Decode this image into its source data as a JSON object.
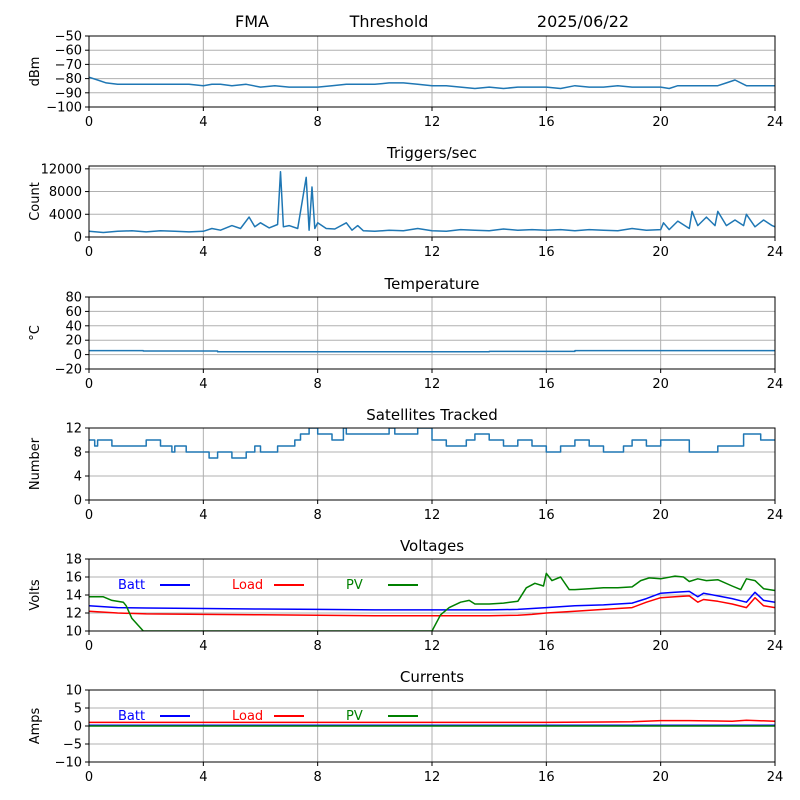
{
  "header": {
    "station": "FMA",
    "mode": "Threshold",
    "date": "2025/06/22"
  },
  "chart_data": [
    {
      "id": "signal",
      "type": "line",
      "title": "",
      "ylabel": "dBm",
      "xlim": [
        0,
        24
      ],
      "ylim": [
        -100,
        -50
      ],
      "xticks": [
        "0",
        "4",
        "8",
        "12",
        "16",
        "20",
        "24"
      ],
      "yticks": [
        "−50",
        "−60",
        "−70",
        "−80",
        "−90",
        "−100"
      ],
      "ytick_values": [
        -50,
        -60,
        -70,
        -80,
        -90,
        -100
      ],
      "grid": true,
      "series": [
        {
          "color": "#1f77b4",
          "x": [
            0,
            0.3,
            0.6,
            1,
            1.5,
            2,
            2.5,
            3,
            3.5,
            4,
            4.3,
            4.6,
            5,
            5.5,
            6,
            6.5,
            7,
            7.5,
            8,
            8.5,
            9,
            9.5,
            10,
            10.5,
            11,
            11.5,
            12,
            12.5,
            13,
            13.5,
            14,
            14.5,
            15,
            15.5,
            16,
            16.5,
            17,
            17.5,
            18,
            18.5,
            19,
            19.5,
            20,
            20.3,
            20.6,
            21,
            21.5,
            22,
            22.3,
            22.6,
            23,
            23.3,
            23.6,
            24
          ],
          "y": [
            -79,
            -81,
            -83,
            -84,
            -84,
            -84,
            -84,
            -84,
            -84,
            -85,
            -84,
            -84,
            -85,
            -84,
            -86,
            -85,
            -86,
            -86,
            -86,
            -85,
            -84,
            -84,
            -84,
            -83,
            -83,
            -84,
            -85,
            -85,
            -86,
            -87,
            -86,
            -87,
            -86,
            -86,
            -86,
            -87,
            -85,
            -86,
            -86,
            -85,
            -86,
            -86,
            -86,
            -87,
            -85,
            -85,
            -85,
            -85,
            -83,
            -81,
            -85,
            -85,
            -85,
            -85
          ]
        }
      ]
    },
    {
      "id": "triggers",
      "type": "line",
      "title": "Triggers/sec",
      "ylabel": "Count",
      "xlim": [
        0,
        24
      ],
      "ylim": [
        0,
        12500
      ],
      "xticks": [
        "0",
        "4",
        "8",
        "12",
        "16",
        "20",
        "24"
      ],
      "yticks": [
        "0",
        "4000",
        "8000",
        "12000"
      ],
      "ytick_values": [
        0,
        4000,
        8000,
        12000
      ],
      "grid": true,
      "series": [
        {
          "color": "#1f77b4",
          "x": [
            0,
            0.5,
            1,
            1.5,
            2,
            2.5,
            3,
            3.5,
            4,
            4.3,
            4.6,
            5,
            5.3,
            5.6,
            5.8,
            6,
            6.3,
            6.6,
            6.7,
            6.8,
            7,
            7.3,
            7.6,
            7.7,
            7.8,
            7.9,
            8,
            8.3,
            8.6,
            9,
            9.2,
            9.4,
            9.6,
            10,
            10.5,
            11,
            11.5,
            12,
            12.5,
            13,
            13.5,
            14,
            14.5,
            15,
            15.5,
            16,
            16.5,
            17,
            17.5,
            18,
            18.5,
            19,
            19.5,
            20,
            20.1,
            20.3,
            20.6,
            21,
            21.1,
            21.3,
            21.6,
            21.9,
            22,
            22.3,
            22.6,
            22.9,
            23,
            23.3,
            23.6,
            23.9,
            24
          ],
          "y": [
            1000,
            800,
            1000,
            1100,
            900,
            1100,
            1000,
            900,
            1000,
            1500,
            1200,
            2000,
            1500,
            3500,
            1800,
            2500,
            1600,
            2200,
            11500,
            1800,
            2000,
            1500,
            10500,
            1200,
            8800,
            1500,
            2500,
            1500,
            1400,
            2500,
            1200,
            2000,
            1100,
            1000,
            1200,
            1100,
            1500,
            1100,
            1000,
            1300,
            1200,
            1100,
            1400,
            1200,
            1300,
            1200,
            1300,
            1100,
            1300,
            1200,
            1100,
            1500,
            1200,
            1300,
            2500,
            1300,
            2800,
            1500,
            4500,
            2000,
            3500,
            2000,
            4500,
            2000,
            3000,
            2000,
            4000,
            1800,
            3000,
            2000,
            1800
          ]
        }
      ]
    },
    {
      "id": "temperature",
      "type": "line",
      "title": "Temperature",
      "ylabel": "°C",
      "xlim": [
        0,
        24
      ],
      "ylim": [
        -20,
        80
      ],
      "xticks": [
        "0",
        "4",
        "8",
        "12",
        "16",
        "20",
        "24"
      ],
      "yticks": [
        "−20",
        "0",
        "20",
        "40",
        "60",
        "80"
      ],
      "ytick_values": [
        -20,
        0,
        20,
        40,
        60,
        80
      ],
      "grid": true,
      "series": [
        {
          "color": "#1f77b4",
          "x": [
            0,
            1.9,
            1.9,
            4.5,
            4.5,
            14,
            14,
            17,
            17,
            24
          ],
          "y": [
            5.5,
            5.5,
            5,
            5,
            4,
            4,
            4.5,
            4.5,
            5.5,
            5.5
          ]
        }
      ]
    },
    {
      "id": "satellites",
      "type": "line",
      "title": "Satellites Tracked",
      "ylabel": "Number",
      "xlim": [
        0,
        24
      ],
      "ylim": [
        0,
        12
      ],
      "xticks": [
        "0",
        "4",
        "8",
        "12",
        "16",
        "20",
        "24"
      ],
      "yticks": [
        "0",
        "4",
        "8",
        "12"
      ],
      "ytick_values": [
        0,
        4,
        8,
        12
      ],
      "grid": true,
      "series": [
        {
          "color": "#1f77b4",
          "x": [
            0,
            0.2,
            0.2,
            0.3,
            0.3,
            0.8,
            0.8,
            1.1,
            1.1,
            1.3,
            1.3,
            2,
            2,
            2.5,
            2.5,
            2.9,
            2.9,
            3,
            3,
            3.4,
            3.4,
            3.8,
            3.8,
            4.2,
            4.2,
            4.5,
            4.5,
            5,
            5,
            5.5,
            5.5,
            5.8,
            5.8,
            6,
            6,
            6.6,
            6.6,
            7.2,
            7.2,
            7.4,
            7.4,
            7.7,
            7.7,
            8,
            8,
            8.5,
            8.5,
            8.9,
            8.9,
            9,
            9,
            10,
            10,
            10.5,
            10.5,
            10.7,
            10.7,
            11.5,
            11.5,
            12,
            12,
            12.5,
            12.5,
            13.2,
            13.2,
            13.5,
            13.5,
            14,
            14,
            14.5,
            14.5,
            15,
            15,
            15.5,
            15.5,
            16,
            16,
            16.5,
            16.5,
            17,
            17,
            17.5,
            17.5,
            18,
            18,
            18.7,
            18.7,
            19,
            19,
            19.5,
            19.5,
            20,
            20,
            20.5,
            20.5,
            21,
            21,
            22,
            22,
            22.7,
            22.7,
            22.9,
            22.9,
            23.5,
            23.5,
            24
          ],
          "y": [
            10,
            10,
            9,
            9,
            10,
            10,
            9,
            9,
            9,
            9,
            9,
            9,
            10,
            10,
            9,
            9,
            8,
            8,
            9,
            9,
            8,
            8,
            8,
            8,
            7,
            7,
            8,
            8,
            7,
            7,
            8,
            8,
            9,
            9,
            8,
            8,
            9,
            9,
            10,
            10,
            11,
            11,
            12,
            12,
            11,
            11,
            10,
            10,
            12,
            12,
            11,
            11,
            11,
            11,
            12,
            12,
            11,
            11,
            12,
            12,
            10,
            10,
            9,
            9,
            10,
            10,
            11,
            11,
            10,
            10,
            9,
            9,
            10,
            10,
            9,
            9,
            8,
            8,
            9,
            9,
            10,
            10,
            9,
            9,
            8,
            8,
            9,
            9,
            10,
            10,
            9,
            9,
            10,
            10,
            10,
            10,
            8,
            8,
            9,
            9,
            9,
            9,
            11,
            11,
            10,
            10
          ]
        }
      ]
    },
    {
      "id": "voltages",
      "type": "line",
      "title": "Voltages",
      "ylabel": "Volts",
      "xlim": [
        0,
        24
      ],
      "ylim": [
        10,
        18
      ],
      "xticks": [
        "0",
        "4",
        "8",
        "12",
        "16",
        "20",
        "24"
      ],
      "yticks": [
        "10",
        "12",
        "14",
        "16",
        "18"
      ],
      "ytick_values": [
        10,
        12,
        14,
        16,
        18
      ],
      "grid": true,
      "legend": [
        "Batt",
        "Load",
        "PV"
      ],
      "series": [
        {
          "name": "Batt",
          "color": "#0000ff",
          "x": [
            0,
            1,
            2,
            4,
            6,
            8,
            10,
            12,
            14,
            15,
            15.5,
            16,
            17,
            18,
            19,
            19.5,
            20,
            20.5,
            21,
            21.3,
            21.5,
            22,
            22.5,
            23,
            23.3,
            23.6,
            24
          ],
          "y": [
            12.8,
            12.6,
            12.55,
            12.5,
            12.45,
            12.4,
            12.35,
            12.35,
            12.35,
            12.4,
            12.5,
            12.6,
            12.8,
            12.9,
            13.1,
            13.6,
            14.2,
            14.3,
            14.4,
            13.8,
            14.2,
            13.9,
            13.6,
            13.2,
            14.3,
            13.4,
            13.2
          ]
        },
        {
          "name": "Load",
          "color": "#ff0000",
          "x": [
            0,
            1,
            2,
            4,
            6,
            8,
            10,
            12,
            14,
            15,
            15.5,
            16,
            17,
            18,
            19,
            19.5,
            20,
            20.5,
            21,
            21.3,
            21.5,
            22,
            22.5,
            23,
            23.3,
            23.6,
            24
          ],
          "y": [
            12.2,
            12.0,
            11.9,
            11.85,
            11.8,
            11.75,
            11.7,
            11.7,
            11.7,
            11.75,
            11.85,
            12.0,
            12.2,
            12.4,
            12.6,
            13.2,
            13.7,
            13.8,
            13.9,
            13.2,
            13.5,
            13.3,
            13.0,
            12.6,
            13.7,
            12.8,
            12.6
          ]
        },
        {
          "name": "PV",
          "color": "#008000",
          "x": [
            0,
            0.5,
            0.8,
            1.2,
            1.3,
            1.5,
            1.9,
            12,
            12.3,
            12.6,
            13,
            13.3,
            13.5,
            14,
            14.5,
            15,
            15.3,
            15.6,
            15.9,
            16,
            16.2,
            16.5,
            16.8,
            17,
            17.5,
            18,
            18.5,
            19,
            19.3,
            19.6,
            20,
            20.5,
            20.8,
            21,
            21.3,
            21.6,
            22,
            22.5,
            22.8,
            23,
            23.3,
            23.6,
            24
          ],
          "y": [
            13.8,
            13.8,
            13.4,
            13.2,
            12.8,
            11.4,
            10,
            10,
            11.8,
            12.6,
            13.2,
            13.4,
            13.0,
            13.0,
            13.1,
            13.3,
            14.8,
            15.3,
            15.0,
            16.4,
            15.6,
            16.0,
            14.6,
            14.6,
            14.7,
            14.8,
            14.8,
            14.9,
            15.6,
            15.9,
            15.8,
            16.1,
            16.0,
            15.5,
            15.8,
            15.6,
            15.7,
            15.0,
            14.6,
            15.8,
            15.6,
            14.7,
            14.5
          ]
        }
      ]
    },
    {
      "id": "currents",
      "type": "line",
      "title": "Currents",
      "ylabel": "Amps",
      "xlim": [
        0,
        24
      ],
      "ylim": [
        -10,
        10
      ],
      "xticks": [
        "0",
        "4",
        "8",
        "12",
        "16",
        "20",
        "24"
      ],
      "yticks": [
        "−10",
        "−5",
        "0",
        "5",
        "10"
      ],
      "ytick_values": [
        -10,
        -5,
        0,
        5,
        10
      ],
      "grid": true,
      "legend": [
        "Batt",
        "Load",
        "PV"
      ],
      "series": [
        {
          "name": "Batt",
          "color": "#0000ff",
          "x": [
            0,
            24
          ],
          "y": [
            0.2,
            0.2
          ]
        },
        {
          "name": "Load",
          "color": "#ff0000",
          "x": [
            0,
            4,
            8,
            12,
            16,
            18,
            19,
            20,
            21,
            22,
            22.5,
            23,
            24
          ],
          "y": [
            1.0,
            1.0,
            1.0,
            1.0,
            1.0,
            1.1,
            1.2,
            1.5,
            1.5,
            1.4,
            1.3,
            1.6,
            1.3
          ]
        },
        {
          "name": "PV",
          "color": "#008000",
          "x": [
            0,
            24
          ],
          "y": [
            0,
            0
          ]
        }
      ]
    }
  ]
}
